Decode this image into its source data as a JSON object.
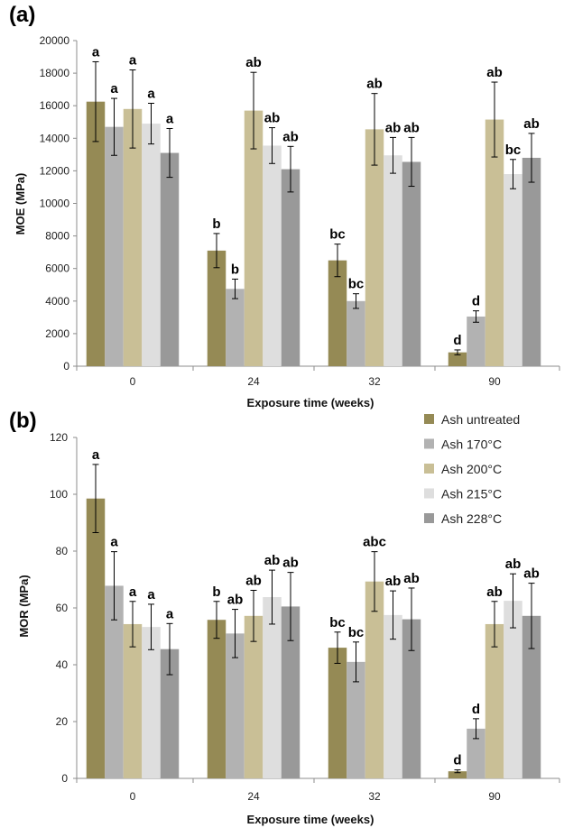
{
  "chart_data": [
    {
      "type": "bar",
      "panel_label": "(a)",
      "xlabel": "Exposure time (weeks)",
      "ylabel": "MOE (MPa)",
      "categories": [
        "0",
        "24",
        "32",
        "90"
      ],
      "ylim": [
        0,
        20000
      ],
      "yticks": [
        "0",
        "2000",
        "4000",
        "6000",
        "8000",
        "10000",
        "12000",
        "14000",
        "16000",
        "18000",
        "20000"
      ],
      "grid": false,
      "series": [
        {
          "name": "Ash untreated",
          "color": "#958a55",
          "values": [
            16250,
            7100,
            6500,
            850
          ],
          "errors": [
            2450,
            1050,
            1000,
            150
          ],
          "letters": [
            "a",
            "b",
            "bc",
            "d"
          ]
        },
        {
          "name": "Ash 170°C",
          "color": "#b2b2b2",
          "values": [
            14700,
            4750,
            4000,
            3050
          ],
          "errors": [
            1750,
            600,
            450,
            350
          ],
          "letters": [
            "a",
            "b",
            "bc",
            "d"
          ]
        },
        {
          "name": "Ash 200°C",
          "color": "#c9bf96",
          "values": [
            15800,
            15700,
            14550,
            15150
          ],
          "errors": [
            2400,
            2350,
            2200,
            2300
          ],
          "letters": [
            "a",
            "ab",
            "ab",
            "ab"
          ]
        },
        {
          "name": "Ash 215°C",
          "color": "#dedede",
          "values": [
            14900,
            13550,
            12950,
            11800
          ],
          "errors": [
            1250,
            1100,
            1100,
            900
          ],
          "letters": [
            "a",
            "ab",
            "ab",
            "bc"
          ]
        },
        {
          "name": "Ash 228°C",
          "color": "#999999",
          "values": [
            13100,
            12100,
            12550,
            12800
          ],
          "errors": [
            1500,
            1400,
            1500,
            1500
          ],
          "letters": [
            "a",
            "ab",
            "ab",
            "ab"
          ]
        }
      ]
    },
    {
      "type": "bar",
      "panel_label": "(b)",
      "xlabel": "Exposure time (weeks)",
      "ylabel": "MOR (MPa)",
      "categories": [
        "0",
        "24",
        "32",
        "90"
      ],
      "ylim": [
        0,
        120
      ],
      "yticks": [
        "0",
        "20",
        "40",
        "60",
        "80",
        "100",
        "120"
      ],
      "grid": false,
      "legend": "top-right",
      "series": [
        {
          "name": "Ash untreated",
          "color": "#958a55",
          "values": [
            98.5,
            55.8,
            46,
            2.5
          ],
          "errors": [
            12,
            6.5,
            5.5,
            0.5
          ],
          "letters": [
            "a",
            "b",
            "bc",
            "d"
          ]
        },
        {
          "name": "Ash 170°C",
          "color": "#b2b2b2",
          "values": [
            67.8,
            51,
            41,
            17.5
          ],
          "errors": [
            12,
            8.5,
            7,
            3.5
          ],
          "letters": [
            "a",
            "ab",
            "bc",
            "d"
          ]
        },
        {
          "name": "Ash 200°C",
          "color": "#c9bf96",
          "values": [
            54.3,
            57.2,
            69.3,
            54.3
          ],
          "errors": [
            8,
            9,
            10.5,
            8
          ],
          "letters": [
            "a",
            "ab",
            "abc",
            "ab"
          ]
        },
        {
          "name": "Ash 215°C",
          "color": "#dedede",
          "values": [
            53.3,
            63.8,
            57.5,
            62.5
          ],
          "errors": [
            8,
            9.5,
            8.5,
            9.5
          ],
          "letters": [
            "a",
            "ab",
            "ab",
            "ab"
          ]
        },
        {
          "name": "Ash 228°C",
          "color": "#999999",
          "values": [
            45.5,
            60.5,
            56,
            57.2
          ],
          "errors": [
            9,
            12,
            11,
            11.5
          ],
          "letters": [
            "a",
            "ab",
            "ab",
            "ab"
          ]
        }
      ]
    }
  ]
}
